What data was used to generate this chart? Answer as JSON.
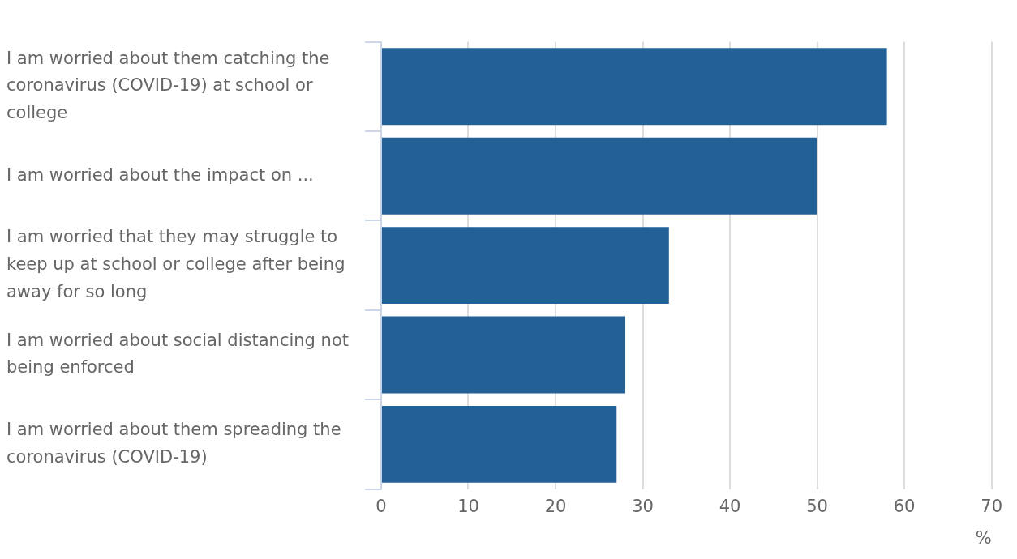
{
  "chart_data": {
    "type": "bar",
    "orientation": "horizontal",
    "categories": [
      "I am worried about them catching the coronavirus (COVID-19) at school or college",
      "I am worried about the impact on ...",
      "I am worried that they may struggle to keep up at school or college after being away for so long",
      "I am worried about social distancing not being enforced",
      "I am worried about them spreading the coronavirus (COVID-19)"
    ],
    "values": [
      58,
      50,
      33,
      28,
      27
    ],
    "color": "#226096",
    "xlim": [
      0,
      70
    ],
    "xticks": [
      0,
      10,
      20,
      30,
      40,
      50,
      60,
      70
    ],
    "xlabel": "%",
    "grid": "x",
    "legend": false
  }
}
